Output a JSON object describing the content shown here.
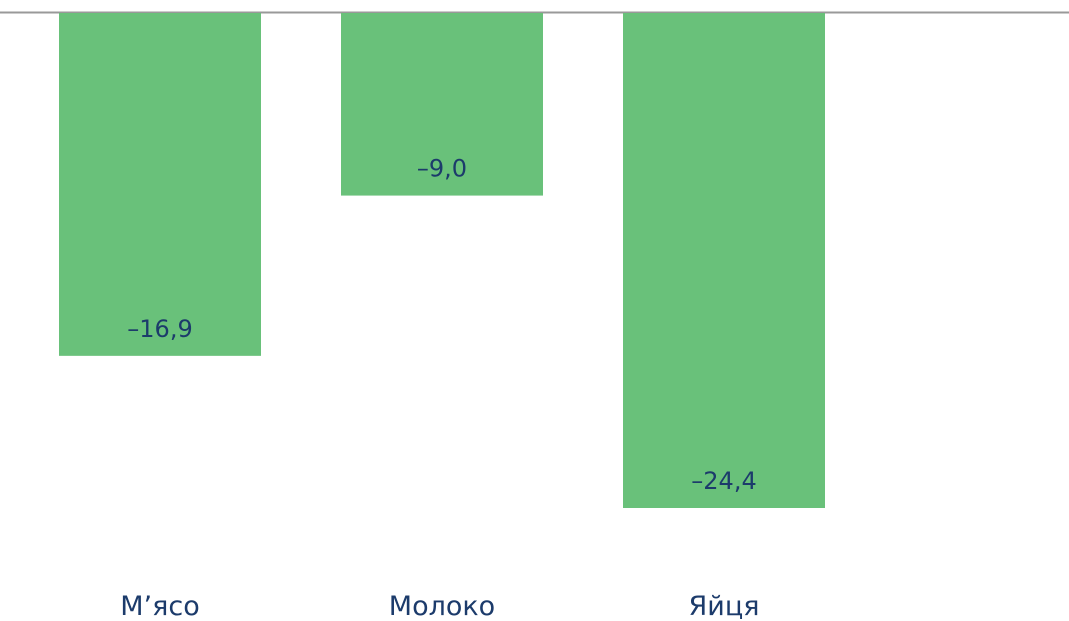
{
  "chart_data": {
    "type": "bar",
    "title": "",
    "xlabel": "",
    "ylabel": "",
    "categories": [
      "М’ясо",
      "Молоко",
      "Яйця"
    ],
    "values": [
      -16.9,
      -9.0,
      -24.4
    ],
    "value_labels": [
      "–16,9",
      "–9,0",
      "–24,4"
    ],
    "ylim": [
      -24.4,
      0
    ],
    "grid": false,
    "legend": "none"
  },
  "colors": {
    "bar": "#69c17a",
    "label_text": "#1c3b6b",
    "axis": "#999999"
  }
}
